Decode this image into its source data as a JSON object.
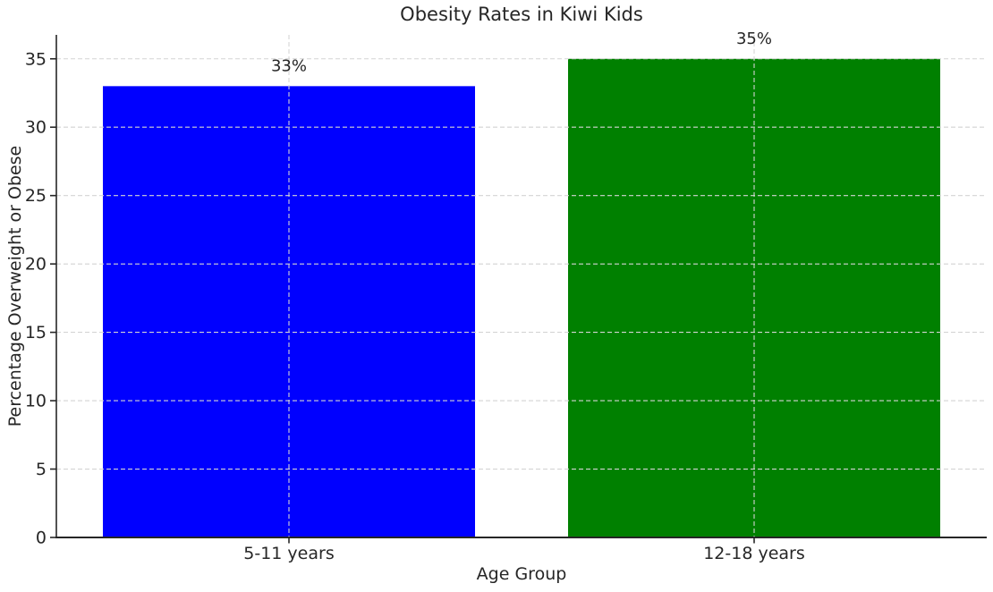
{
  "chart_data": {
    "type": "bar",
    "title": "Obesity Rates in Kiwi Kids",
    "xlabel": "Age Group",
    "ylabel": "Percentage Overweight or Obese",
    "categories": [
      "5-11 years",
      "12-18 years"
    ],
    "values": [
      33,
      35
    ],
    "bar_labels": [
      "33%",
      "35%"
    ],
    "bar_colors": [
      "#0000ff",
      "#008000"
    ],
    "yticks": [
      0,
      5,
      10,
      15,
      20,
      25,
      30,
      35
    ],
    "ylim": [
      0,
      36.75
    ],
    "bar_width_fraction": 0.8,
    "grid": {
      "style": "dashed",
      "color": "#d4d4d4",
      "horizontal": true,
      "vertical": true,
      "above_bars": true
    },
    "legend": "none",
    "colors": {
      "text": "#262626",
      "spine": "#262626",
      "background": "#ffffff"
    }
  }
}
